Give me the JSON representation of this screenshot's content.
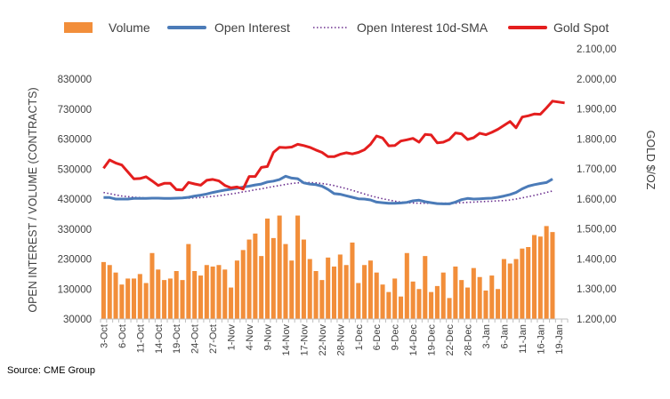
{
  "chart_data": {
    "type": "bar+line",
    "legend": {
      "placement": "top",
      "items": [
        {
          "label": "Volume",
          "style": "bar",
          "color": "#F28E3A"
        },
        {
          "label": "Open Interest",
          "style": "line",
          "color": "#4B7BB8"
        },
        {
          "label": "Open Interest 10d-SMA",
          "style": "dotted",
          "color": "#6A2E8E"
        },
        {
          "label": "Gold Spot",
          "style": "line",
          "color": "#E41E1E"
        }
      ]
    },
    "ylabel_left": "OPEN INTEREST / VOLUME (CONTRACTS)",
    "ylabel_right": "GOLD $/OZ",
    "yleft_ticks": [
      "30000",
      "130000",
      "230000",
      "330000",
      "430000",
      "530000",
      "630000",
      "730000",
      "830000"
    ],
    "yleft_range": [
      30000,
      830000
    ],
    "yright_ticks": [
      "1.200,00",
      "1.300,00",
      "1.400,00",
      "1.500,00",
      "1.600,00",
      "1.700,00",
      "1.800,00",
      "1.900,00",
      "2.000,00",
      "2.100,00"
    ],
    "yright_range": [
      1200,
      2100
    ],
    "xtick_labels": [
      "3-Oct",
      "6-Oct",
      "11-Oct",
      "14-Oct",
      "19-Oct",
      "24-Oct",
      "27-Oct",
      "1-Nov",
      "4-Nov",
      "9-Nov",
      "14-Nov",
      "17-Nov",
      "22-Nov",
      "28-Nov",
      "1-Dec",
      "6-Dec",
      "9-Dec",
      "14-Dec",
      "19-Dec",
      "22-Dec",
      "28-Dec",
      "3-Jan",
      "6-Jan",
      "11-Jan",
      "16-Jan",
      "19-Jan"
    ],
    "days": 77,
    "data_days": 75,
    "volume": [
      220000,
      210000,
      185000,
      145000,
      165000,
      165000,
      180000,
      150000,
      250000,
      195000,
      160000,
      165000,
      190000,
      160000,
      280000,
      190000,
      175000,
      210000,
      205000,
      210000,
      195000,
      135000,
      225000,
      260000,
      295000,
      315000,
      240000,
      365000,
      300000,
      375000,
      280000,
      225000,
      375000,
      295000,
      230000,
      190000,
      160000,
      235000,
      205000,
      245000,
      210000,
      285000,
      150000,
      210000,
      225000,
      185000,
      145000,
      120000,
      165000,
      105000,
      250000,
      155000,
      130000,
      240000,
      120000,
      140000,
      185000,
      100000,
      205000,
      160000,
      135000,
      200000,
      170000,
      125000,
      175000,
      130000,
      230000,
      215000,
      230000,
      265000,
      270000,
      310000,
      305000,
      340000,
      320000
    ],
    "open_interest": [
      435000,
      435000,
      430000,
      430000,
      430000,
      432000,
      432000,
      432000,
      433000,
      433000,
      432000,
      432000,
      433000,
      434000,
      436000,
      440000,
      443000,
      447000,
      452000,
      456000,
      460000,
      463000,
      466000,
      470000,
      473000,
      477000,
      480000,
      487000,
      490000,
      495000,
      506000,
      500000,
      498000,
      484000,
      480000,
      478000,
      473000,
      462000,
      448000,
      446000,
      441000,
      436000,
      431000,
      430000,
      427000,
      420000,
      418000,
      416000,
      416000,
      417000,
      419000,
      424000,
      426000,
      421000,
      418000,
      415000,
      414000,
      414000,
      420000,
      428000,
      432000,
      430000,
      431000,
      432000,
      433000,
      436000,
      440000,
      445000,
      452000,
      464000,
      473000,
      478000,
      482000,
      485000,
      497000
    ],
    "open_interest_sma": [
      452000,
      448000,
      444000,
      440000,
      438000,
      436000,
      435000,
      433000,
      433000,
      432000,
      432000,
      432000,
      432000,
      433000,
      433000,
      434000,
      435000,
      437000,
      439000,
      441000,
      444000,
      447000,
      450000,
      454000,
      457000,
      461000,
      464000,
      468000,
      472000,
      475000,
      479000,
      482000,
      484000,
      485000,
      485000,
      484000,
      482000,
      479000,
      475000,
      470000,
      465000,
      459000,
      453000,
      447000,
      441000,
      436000,
      431000,
      427000,
      423000,
      420000,
      418000,
      417000,
      416000,
      416000,
      416000,
      416000,
      416000,
      416000,
      416000,
      418000,
      419000,
      420000,
      421000,
      422000,
      423000,
      424000,
      425000,
      427000,
      430000,
      434000,
      438000,
      442000,
      447000,
      452000,
      457000
    ],
    "gold_spot": [
      1702,
      1730,
      1720,
      1713,
      1690,
      1667,
      1668,
      1674,
      1660,
      1645,
      1652,
      1652,
      1631,
      1630,
      1655,
      1650,
      1646,
      1662,
      1665,
      1660,
      1645,
      1637,
      1640,
      1633,
      1675,
      1675,
      1705,
      1708,
      1755,
      1772,
      1771,
      1773,
      1782,
      1778,
      1772,
      1763,
      1755,
      1741,
      1741,
      1749,
      1754,
      1750,
      1755,
      1764,
      1782,
      1810,
      1803,
      1777,
      1778,
      1793,
      1797,
      1802,
      1789,
      1815,
      1813,
      1787,
      1789,
      1798,
      1820,
      1817,
      1798,
      1804,
      1819,
      1814,
      1822,
      1832,
      1845,
      1858,
      1837,
      1873,
      1877,
      1883,
      1882,
      1903,
      1926,
      1923,
      1920
    ]
  },
  "source": "Source: CME Group"
}
